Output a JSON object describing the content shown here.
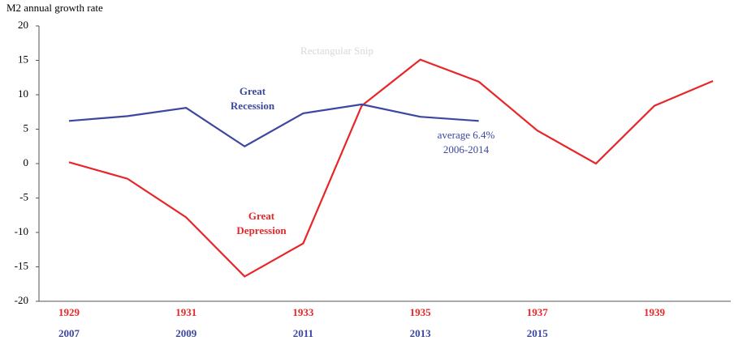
{
  "chart_data": {
    "type": "line",
    "y_label": "M2 annual growth rate",
    "categories": [
      "1929",
      null,
      "1931",
      null,
      "1933",
      null,
      "1935",
      null,
      "1937",
      null,
      "1939",
      null
    ],
    "categories_2": [
      "2007",
      null,
      "2009",
      null,
      "2011",
      null,
      "2013",
      null,
      "2015",
      null,
      null,
      null
    ],
    "series": [
      {
        "name": "Great Depression",
        "color": "#e8262a",
        "values": [
          0.2,
          -2.2,
          -7.8,
          -16.4,
          -11.6,
          8.4,
          15.1,
          11.9,
          4.8,
          0,
          8.4,
          12.0
        ]
      },
      {
        "name": "Great Recession",
        "color": "#3b47a0",
        "values": [
          6.2,
          6.9,
          8.1,
          2.5,
          7.3,
          8.6,
          6.8,
          6.2,
          null,
          null,
          null,
          null
        ]
      }
    ],
    "annotations": [
      {
        "lines": [
          "Great",
          "Recession"
        ],
        "color": "#3b47a0"
      },
      {
        "lines": [
          "average 6.4%",
          "2006-2014"
        ],
        "color": "#3b47a0"
      },
      {
        "lines": [
          "Great",
          "Depression"
        ],
        "color": "#e8262a"
      },
      {
        "lines": [
          "Rectangular Snip"
        ],
        "color": "#d8d8d8"
      }
    ],
    "ylim": [
      -20,
      20
    ],
    "yticks": [
      -20,
      -15,
      -10,
      -5,
      0,
      5,
      10,
      15,
      20
    ],
    "grid": false
  }
}
